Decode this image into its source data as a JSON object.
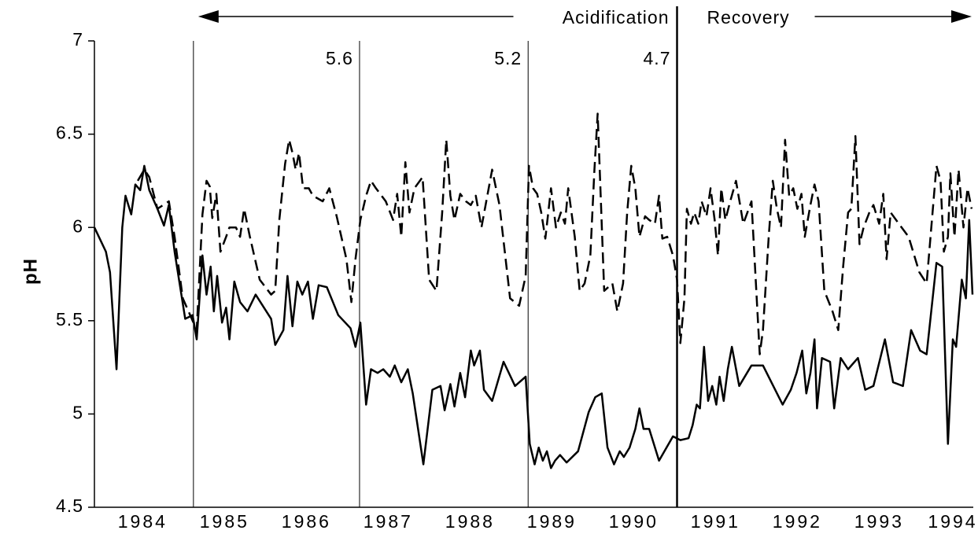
{
  "chart_data": {
    "type": "line",
    "y_label": "pH",
    "arrow_labels": [
      "Acidification",
      "Recovery"
    ],
    "phase_labels": [
      5.6,
      5.2,
      4.7
    ],
    "vlines": [
      1985.12,
      1987.15,
      1989.21,
      1991.03
    ],
    "xlim": [
      1983.91,
      1994.65
    ],
    "xticks": [
      {
        "value": 1984.5,
        "label": "1984"
      },
      {
        "value": 1985.5,
        "label": "1985"
      },
      {
        "value": 1986.5,
        "label": "1986"
      },
      {
        "value": 1987.5,
        "label": "1987"
      },
      {
        "value": 1988.5,
        "label": "1988"
      },
      {
        "value": 1989.5,
        "label": "1989"
      },
      {
        "value": 1990.5,
        "label": "1990"
      },
      {
        "value": 1991.5,
        "label": "1991"
      },
      {
        "value": 1992.5,
        "label": "1992"
      },
      {
        "value": 1993.5,
        "label": "1993"
      },
      {
        "value": 1994.4,
        "label": "1994"
      }
    ],
    "ylim": [
      4.5,
      7
    ],
    "yticks": [
      4.5,
      5,
      5.5,
      6,
      6.5,
      7
    ],
    "series": [
      {
        "color": "#000000",
        "dash": false,
        "x": [
          1983.91,
          1984.05,
          1984.1,
          1984.18,
          1984.25,
          1984.29,
          1984.36,
          1984.41,
          1984.47,
          1984.52,
          1984.58,
          1984.68,
          1984.76,
          1984.82,
          1984.89,
          1985.02,
          1985.11,
          1985.16,
          1985.23,
          1985.28,
          1985.33,
          1985.37,
          1985.41,
          1985.47,
          1985.52,
          1985.56,
          1985.62,
          1985.69,
          1985.78,
          1985.88,
          1986.07,
          1986.12,
          1986.22,
          1986.27,
          1986.33,
          1986.39,
          1986.45,
          1986.52,
          1986.58,
          1986.65,
          1986.75,
          1986.89,
          1987.04,
          1987.1,
          1987.16,
          1987.23,
          1987.29,
          1987.37,
          1987.44,
          1987.52,
          1987.58,
          1987.66,
          1987.74,
          1987.8,
          1987.93,
          1988.04,
          1988.14,
          1988.19,
          1988.26,
          1988.31,
          1988.38,
          1988.44,
          1988.51,
          1988.55,
          1988.62,
          1988.67,
          1988.77,
          1988.91,
          1989.05,
          1989.18,
          1989.23,
          1989.29,
          1989.34,
          1989.39,
          1989.44,
          1989.49,
          1989.54,
          1989.6,
          1989.68,
          1989.82,
          1989.95,
          1990.03,
          1990.11,
          1990.18,
          1990.26,
          1990.33,
          1990.38,
          1990.45,
          1990.52,
          1990.57,
          1990.62,
          1990.69,
          1990.81,
          1990.98,
          1991.07,
          1991.17,
          1991.22,
          1991.27,
          1991.31,
          1991.36,
          1991.41,
          1991.46,
          1991.51,
          1991.55,
          1991.6,
          1991.65,
          1991.7,
          1991.79,
          1991.94,
          1992.08,
          1992.32,
          1992.42,
          1992.49,
          1992.56,
          1992.61,
          1992.66,
          1992.71,
          1992.74,
          1992.8,
          1992.9,
          1992.95,
          1993.03,
          1993.12,
          1993.24,
          1993.33,
          1993.43,
          1993.57,
          1993.67,
          1993.79,
          1993.89,
          1994.0,
          1994.08,
          1994.2,
          1994.27,
          1994.34,
          1994.4,
          1994.44,
          1994.51,
          1994.56,
          1994.6,
          1994.64
        ],
        "values": [
          6.0,
          5.87,
          5.76,
          5.24,
          6.0,
          6.17,
          6.07,
          6.23,
          6.2,
          6.33,
          6.2,
          6.1,
          6.01,
          6.12,
          5.87,
          5.51,
          5.53,
          5.4,
          5.85,
          5.64,
          5.79,
          5.55,
          5.74,
          5.49,
          5.57,
          5.4,
          5.71,
          5.6,
          5.55,
          5.64,
          5.51,
          5.37,
          5.45,
          5.74,
          5.47,
          5.71,
          5.64,
          5.71,
          5.51,
          5.69,
          5.68,
          5.53,
          5.46,
          5.36,
          5.49,
          5.05,
          5.24,
          5.22,
          5.24,
          5.2,
          5.26,
          5.17,
          5.24,
          5.11,
          4.73,
          5.13,
          5.15,
          5.02,
          5.16,
          5.04,
          5.22,
          5.09,
          5.34,
          5.26,
          5.34,
          5.13,
          5.07,
          5.28,
          5.15,
          5.2,
          4.84,
          4.73,
          4.82,
          4.75,
          4.8,
          4.71,
          4.75,
          4.78,
          4.74,
          4.8,
          5.01,
          5.09,
          5.11,
          4.82,
          4.73,
          4.8,
          4.77,
          4.82,
          4.92,
          5.03,
          4.92,
          4.92,
          4.75,
          4.88,
          4.86,
          4.87,
          4.94,
          5.05,
          5.03,
          5.36,
          5.07,
          5.15,
          5.05,
          5.2,
          5.07,
          5.24,
          5.36,
          5.15,
          5.26,
          5.26,
          5.05,
          5.13,
          5.22,
          5.34,
          5.11,
          5.22,
          5.4,
          5.03,
          5.3,
          5.28,
          5.03,
          5.3,
          5.24,
          5.3,
          5.13,
          5.15,
          5.4,
          5.17,
          5.15,
          5.45,
          5.34,
          5.32,
          5.81,
          5.79,
          4.84,
          5.4,
          5.36,
          5.72,
          5.62,
          6.04,
          5.64
        ]
      },
      {
        "color": "#000000",
        "dash": true,
        "x": [
          1984.44,
          1984.52,
          1984.58,
          1984.68,
          1984.82,
          1984.89,
          1984.99,
          1985.06,
          1985.16,
          1985.23,
          1985.28,
          1985.32,
          1985.35,
          1985.4,
          1985.45,
          1985.52,
          1985.56,
          1985.64,
          1985.69,
          1985.74,
          1985.81,
          1985.93,
          1986.07,
          1986.12,
          1986.17,
          1986.24,
          1986.29,
          1986.33,
          1986.37,
          1986.41,
          1986.46,
          1986.53,
          1986.58,
          1986.7,
          1986.78,
          1986.87,
          1986.99,
          1987.05,
          1987.1,
          1987.16,
          1987.23,
          1987.29,
          1987.35,
          1987.47,
          1987.56,
          1987.61,
          1987.66,
          1987.71,
          1987.76,
          1987.82,
          1987.92,
          1988.0,
          1988.09,
          1988.16,
          1988.21,
          1988.26,
          1988.31,
          1988.38,
          1988.45,
          1988.51,
          1988.57,
          1988.64,
          1988.77,
          1988.86,
          1988.99,
          1989.1,
          1989.18,
          1989.22,
          1989.27,
          1989.32,
          1989.37,
          1989.42,
          1989.49,
          1989.55,
          1989.61,
          1989.66,
          1989.7,
          1989.78,
          1989.84,
          1989.9,
          1989.97,
          1990.02,
          1990.06,
          1990.14,
          1990.24,
          1990.3,
          1990.37,
          1990.42,
          1990.47,
          1990.52,
          1990.57,
          1990.64,
          1990.69,
          1990.76,
          1990.81,
          1990.85,
          1990.91,
          1990.98,
          1991.03,
          1991.07,
          1991.12,
          1991.15,
          1991.2,
          1991.24,
          1991.29,
          1991.33,
          1991.39,
          1991.44,
          1991.49,
          1991.53,
          1991.57,
          1991.62,
          1991.68,
          1991.75,
          1991.84,
          1991.94,
          1992.04,
          1992.08,
          1992.15,
          1992.2,
          1992.25,
          1992.3,
          1992.35,
          1992.4,
          1992.45,
          1992.5,
          1992.55,
          1992.59,
          1992.66,
          1992.71,
          1992.76,
          1992.83,
          1992.93,
          1993.0,
          1993.06,
          1993.12,
          1993.16,
          1993.21,
          1993.26,
          1993.31,
          1993.38,
          1993.43,
          1993.5,
          1993.55,
          1993.59,
          1993.64,
          1993.74,
          1993.86,
          1993.99,
          1994.08,
          1994.2,
          1994.25,
          1994.29,
          1994.34,
          1994.37,
          1994.42,
          1994.47,
          1994.53,
          1994.58,
          1994.63
        ],
        "values": [
          6.25,
          6.31,
          6.27,
          6.1,
          6.14,
          5.95,
          5.62,
          5.55,
          5.45,
          6.07,
          6.25,
          6.22,
          6.05,
          6.18,
          5.87,
          5.95,
          6.0,
          6.0,
          5.95,
          6.1,
          5.95,
          5.72,
          5.64,
          5.66,
          6.04,
          6.34,
          6.47,
          6.4,
          6.31,
          6.4,
          6.21,
          6.21,
          6.17,
          6.14,
          6.21,
          6.06,
          5.83,
          5.6,
          5.83,
          6.04,
          6.17,
          6.25,
          6.21,
          6.14,
          6.04,
          6.18,
          5.95,
          6.35,
          6.08,
          6.21,
          6.27,
          5.72,
          5.66,
          6.08,
          6.47,
          6.17,
          6.04,
          6.18,
          6.14,
          6.12,
          6.17,
          6.0,
          6.31,
          6.12,
          5.62,
          5.58,
          5.74,
          6.33,
          6.21,
          6.18,
          6.08,
          5.94,
          6.21,
          6.0,
          6.08,
          6.02,
          6.21,
          5.95,
          5.66,
          5.7,
          5.85,
          6.31,
          6.61,
          5.66,
          5.7,
          5.55,
          5.7,
          6.08,
          6.33,
          6.21,
          5.95,
          6.06,
          6.04,
          6.02,
          6.17,
          5.94,
          5.95,
          5.85,
          5.72,
          5.38,
          5.62,
          6.1,
          6.02,
          6.08,
          6.02,
          6.14,
          6.06,
          6.21,
          6.04,
          5.85,
          6.21,
          6.04,
          6.14,
          6.25,
          6.02,
          6.14,
          5.32,
          5.45,
          5.95,
          6.25,
          6.1,
          6.0,
          6.47,
          6.17,
          6.21,
          6.1,
          6.18,
          5.95,
          6.12,
          6.23,
          6.14,
          5.66,
          5.55,
          5.45,
          5.79,
          6.08,
          6.1,
          6.49,
          5.91,
          6.0,
          6.08,
          6.12,
          6.02,
          6.18,
          5.83,
          6.08,
          6.02,
          5.95,
          5.76,
          5.7,
          6.33,
          6.25,
          5.87,
          5.95,
          6.29,
          5.95,
          6.31,
          6.0,
          6.21,
          6.1
        ]
      }
    ]
  }
}
